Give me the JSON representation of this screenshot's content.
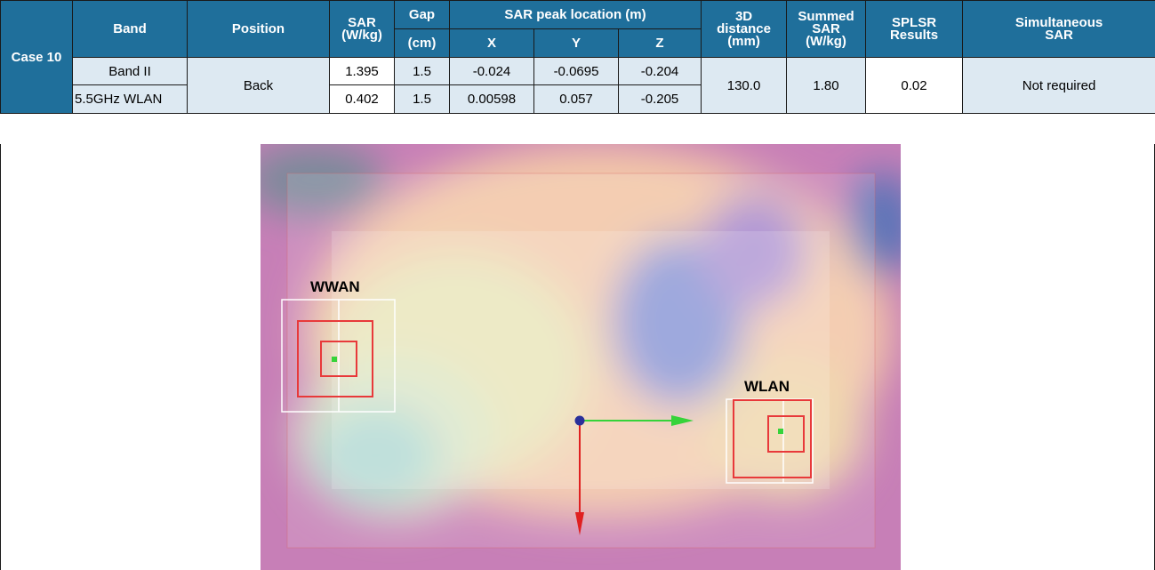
{
  "table": {
    "case_label": "Case 10",
    "headers": {
      "band": "Band",
      "position": "Position",
      "sar_line1": "SAR",
      "sar_line2": "(W/kg)",
      "gap": "Gap",
      "gap_unit": "(cm)",
      "peak_location": "SAR peak location (m)",
      "x": "X",
      "y": "Y",
      "z": "Z",
      "distance_line1": "3D",
      "distance_line2": "distance",
      "distance_line3": "(mm)",
      "summed_line1": "Summed",
      "summed_line2": "SAR",
      "summed_line3": "(W/kg)",
      "splsr_line1": "SPLSR",
      "splsr_line2": "Results",
      "simul_line1": "Simultaneous",
      "simul_line2": "SAR"
    },
    "rows": [
      {
        "band": "Band II",
        "sar": "1.395",
        "gap": "1.5",
        "x": "-0.024",
        "y": "-0.0695",
        "z": "-0.204"
      },
      {
        "band": "5.5GHz WLAN",
        "sar": "0.402",
        "gap": "1.5",
        "x": "0.00598",
        "y": "0.057",
        "z": "-0.205"
      }
    ],
    "position": "Back",
    "distance": "130.0",
    "summed_sar": "1.80",
    "splsr": "0.02",
    "simultaneous": "Not required"
  },
  "figure": {
    "label_left": "WWAN",
    "label_right": "WLAN",
    "colors": {
      "magenta": "#c77fb7",
      "peach": "#f3c7a8",
      "pale_green": "#d9e4c4",
      "blue": "#7d8bd2",
      "frame_red": "#e8393a",
      "axis_green": "#36d33a",
      "axis_red": "#e02020"
    }
  }
}
